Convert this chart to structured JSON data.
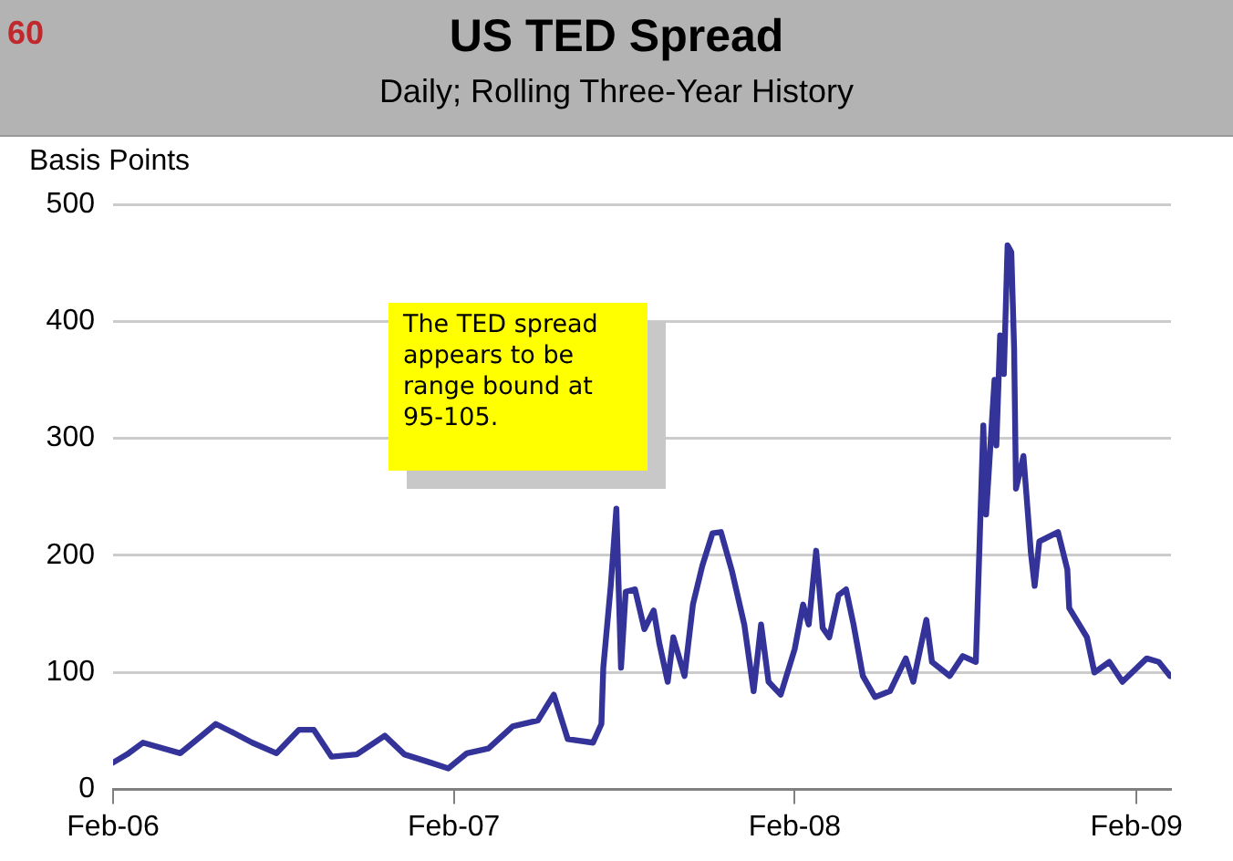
{
  "chart_data": {
    "type": "line",
    "title": "US TED Spread",
    "subtitle": "Daily; Rolling Three-Year History",
    "ylabel": "Basis Points",
    "annotations": [
      "60",
      "The TED spread appears to be range bound at 95-105."
    ],
    "x": [
      "2006-02-01",
      "2006-02-16",
      "2006-03-05",
      "2006-04-14",
      "2006-05-07",
      "2006-05-22",
      "2006-06-11",
      "2006-06-30",
      "2006-07-26",
      "2006-08-19",
      "2006-09-04",
      "2006-09-23",
      "2006-10-20",
      "2006-11-19",
      "2006-12-10",
      "2007-01-07",
      "2007-01-26",
      "2007-02-15",
      "2007-03-10",
      "2007-04-05",
      "2007-05-02",
      "2007-05-19",
      "2007-06-03",
      "2007-06-30",
      "2007-07-09",
      "2007-07-11",
      "2007-07-19",
      "2007-07-25",
      "2007-07-30",
      "2007-08-04",
      "2007-08-14",
      "2007-08-24",
      "2007-09-03",
      "2007-09-09",
      "2007-09-18",
      "2007-09-24",
      "2007-10-06",
      "2007-10-15",
      "2007-10-25",
      "2007-11-05",
      "2007-11-14",
      "2007-11-26",
      "2007-12-09",
      "2007-12-19",
      "2007-12-27",
      "2008-01-04",
      "2008-01-17",
      "2008-02-01",
      "2008-02-10",
      "2008-02-16",
      "2008-02-24",
      "2008-03-02",
      "2008-03-09",
      "2008-03-19",
      "2008-03-27",
      "2008-04-04",
      "2008-04-14",
      "2008-04-27",
      "2008-05-13",
      "2008-05-30",
      "2008-06-07",
      "2008-06-21",
      "2008-06-27",
      "2008-07-16",
      "2008-07-30",
      "2008-08-13",
      "2008-08-21",
      "2008-08-24",
      "2008-09-02",
      "2008-09-04",
      "2008-09-08",
      "2008-09-12",
      "2008-09-16",
      "2008-09-20",
      "2008-09-23",
      "2008-09-25",
      "2008-10-03",
      "2008-10-11",
      "2008-10-15",
      "2008-10-20",
      "2008-11-09",
      "2008-11-19",
      "2008-11-21",
      "2008-12-10",
      "2008-12-18",
      "2009-01-03",
      "2009-01-17",
      "2009-02-12",
      "2009-02-25",
      "2009-03-09"
    ],
    "series": [
      {
        "color": "#333399",
        "values": [
          23,
          30,
          40,
          31,
          46,
          56,
          48,
          40,
          31,
          51,
          51,
          28,
          30,
          46,
          30,
          23,
          18,
          31,
          35,
          54,
          59,
          81,
          43,
          40,
          56,
          104,
          174,
          240,
          104,
          169,
          171,
          137,
          153,
          125,
          92,
          130,
          97,
          158,
          191,
          219,
          220,
          186,
          141,
          84,
          141,
          92,
          81,
          120,
          158,
          141,
          204,
          138,
          130,
          166,
          171,
          141,
          97,
          79,
          84,
          112,
          92,
          145,
          109,
          97,
          114,
          109,
          311,
          235,
          350,
          294,
          388,
          355,
          465,
          459,
          377,
          257,
          285,
          202,
          174,
          212,
          220,
          188,
          155,
          130,
          100,
          109,
          92,
          112,
          109,
          97
        ]
      }
    ],
    "xlim": [
      "2006-02-01",
      "2009-03-10"
    ],
    "xticks": [
      {
        "value": "2006-02-01",
        "label": "Feb-06"
      },
      {
        "value": "2007-02-01",
        "label": "Feb-07"
      },
      {
        "value": "2008-02-01",
        "label": "Feb-08"
      },
      {
        "value": "2009-02-01",
        "label": "Feb-09"
      }
    ],
    "ylim": [
      0,
      500
    ],
    "yticks": [
      0,
      100,
      200,
      300,
      400,
      500
    ],
    "grid": "y",
    "legend": false,
    "marker": "none",
    "line_style": "solid"
  }
}
